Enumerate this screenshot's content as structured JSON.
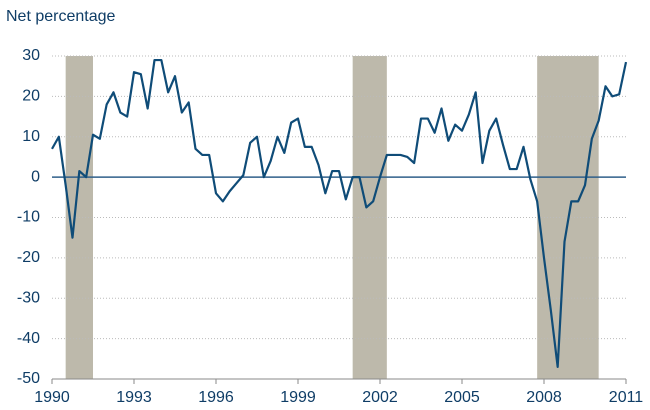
{
  "chart_data": {
    "type": "line",
    "title": "Net percentage",
    "x": [
      1990,
      1990.25,
      1990.5,
      1990.75,
      1991,
      1991.25,
      1991.5,
      1991.75,
      1992,
      1992.25,
      1992.5,
      1992.75,
      1993,
      1993.25,
      1993.5,
      1993.75,
      1994,
      1994.25,
      1994.5,
      1994.75,
      1995,
      1995.25,
      1995.5,
      1995.75,
      1996,
      1996.25,
      1996.5,
      1996.75,
      1997,
      1997.25,
      1997.5,
      1997.75,
      1998,
      1998.25,
      1998.5,
      1998.75,
      1999,
      1999.25,
      1999.5,
      1999.75,
      2000,
      2000.25,
      2000.5,
      2000.75,
      2001,
      2001.25,
      2001.5,
      2001.75,
      2002,
      2002.25,
      2002.5,
      2002.75,
      2003,
      2003.25,
      2003.5,
      2003.75,
      2004,
      2004.25,
      2004.5,
      2004.75,
      2005,
      2005.25,
      2005.5,
      2005.75,
      2006,
      2006.25,
      2006.5,
      2006.75,
      2007,
      2007.25,
      2007.5,
      2007.75,
      2008,
      2008.25,
      2008.5,
      2008.75,
      2009,
      2009.25,
      2009.5,
      2009.75,
      2010,
      2010.25,
      2010.5,
      2010.75,
      2011
    ],
    "series": [
      {
        "color": "#0f4c78",
        "values": [
          7,
          10,
          -2,
          -15,
          1.5,
          0,
          10.5,
          9.5,
          18,
          21,
          16,
          15,
          26,
          25.5,
          17,
          29,
          29,
          21,
          25,
          16,
          18.5,
          7,
          5.5,
          5.5,
          -4,
          -6,
          -3.5,
          -1.5,
          0.5,
          8.5,
          10,
          0,
          4,
          10,
          6,
          13.5,
          14.5,
          7.5,
          7.5,
          3,
          -4,
          1.5,
          1.5,
          -5.5,
          0,
          0,
          -7.5,
          -6,
          0,
          5.5,
          5.5,
          5.5,
          5,
          3.5,
          14.5,
          14.5,
          11,
          17,
          9,
          13,
          11.5,
          15.5,
          21,
          3.5,
          11.5,
          14.5,
          8,
          2,
          2,
          7.5,
          -0.5,
          -6,
          -20,
          -33,
          -47,
          -16,
          -6,
          -6,
          -2,
          9.5,
          14,
          22.5,
          20,
          20.5,
          28.5
        ]
      }
    ],
    "shaded_periods": [
      [
        1990.5,
        1991.5
      ],
      [
        2001,
        2002.25
      ],
      [
        2007.75,
        2010
      ]
    ],
    "shade_color": "#bdb9ab",
    "xlim": [
      1990,
      2011
    ],
    "xticks": [
      1990,
      1993,
      1996,
      1999,
      2002,
      2005,
      2008,
      2011
    ],
    "ylim": [
      -50,
      30
    ],
    "yticks": [
      -50,
      -40,
      -30,
      -20,
      -10,
      0,
      10,
      20,
      30
    ],
    "grid": true
  }
}
